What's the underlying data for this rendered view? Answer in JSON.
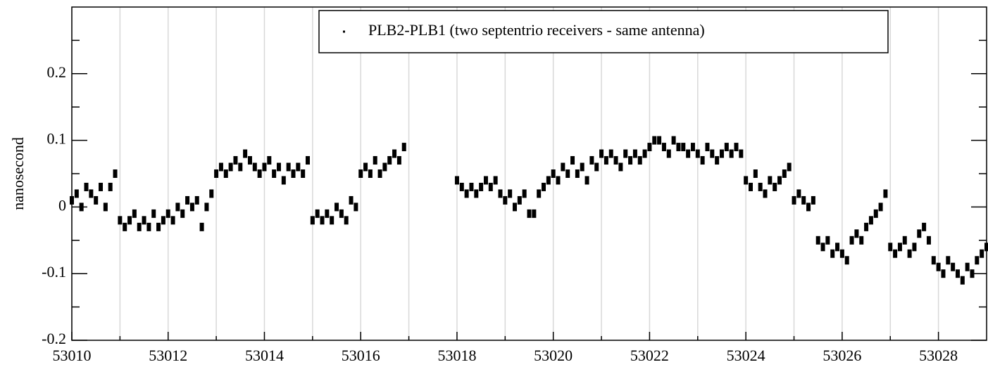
{
  "chart_data": {
    "type": "scatter",
    "y_label": "nanosecond",
    "series": [
      {
        "name": "PLB2-PLB1 (two septentrio receivers - same antenna)",
        "color": "#000000",
        "x": [
          53010.0,
          53010.1,
          53010.2,
          53010.3,
          53010.4,
          53010.5,
          53010.6,
          53010.7,
          53010.8,
          53010.9,
          53011.0,
          53011.1,
          53011.2,
          53011.3,
          53011.4,
          53011.5,
          53011.6,
          53011.7,
          53011.8,
          53011.9,
          53012.0,
          53012.1,
          53012.2,
          53012.3,
          53012.4,
          53012.5,
          53012.6,
          53012.7,
          53012.8,
          53012.9,
          53013.0,
          53013.1,
          53013.2,
          53013.3,
          53013.4,
          53013.5,
          53013.6,
          53013.7,
          53013.8,
          53013.9,
          53014.0,
          53014.1,
          53014.2,
          53014.3,
          53014.4,
          53014.5,
          53014.6,
          53014.7,
          53014.8,
          53014.9,
          53015.0,
          53015.1,
          53015.2,
          53015.3,
          53015.4,
          53015.5,
          53015.6,
          53015.7,
          53015.8,
          53015.9,
          53016.0,
          53016.1,
          53016.2,
          53016.3,
          53016.4,
          53016.5,
          53016.6,
          53016.7,
          53016.8,
          53016.9,
          53018.0,
          53018.1,
          53018.2,
          53018.3,
          53018.4,
          53018.5,
          53018.6,
          53018.7,
          53018.8,
          53018.9,
          53019.0,
          53019.1,
          53019.2,
          53019.3,
          53019.4,
          53019.5,
          53019.6,
          53019.7,
          53019.8,
          53019.9,
          53020.0,
          53020.1,
          53020.2,
          53020.3,
          53020.4,
          53020.5,
          53020.6,
          53020.7,
          53020.8,
          53020.9,
          53021.0,
          53021.1,
          53021.2,
          53021.3,
          53021.4,
          53021.5,
          53021.6,
          53021.7,
          53021.8,
          53021.9,
          53022.0,
          53022.1,
          53022.2,
          53022.3,
          53022.4,
          53022.5,
          53022.6,
          53022.7,
          53022.8,
          53022.9,
          53023.0,
          53023.1,
          53023.2,
          53023.3,
          53023.4,
          53023.5,
          53023.6,
          53023.7,
          53023.8,
          53023.9,
          53024.0,
          53024.1,
          53024.2,
          53024.3,
          53024.4,
          53024.5,
          53024.6,
          53024.7,
          53024.8,
          53024.9,
          53025.0,
          53025.1,
          53025.2,
          53025.3,
          53025.4,
          53025.5,
          53025.6,
          53025.7,
          53025.8,
          53025.9,
          53026.0,
          53026.1,
          53026.2,
          53026.3,
          53026.4,
          53026.5,
          53026.6,
          53026.7,
          53026.8,
          53026.9,
          53027.0,
          53027.1,
          53027.2,
          53027.3,
          53027.4,
          53027.5,
          53027.6,
          53027.7,
          53027.8,
          53027.9,
          53028.0,
          53028.1,
          53028.2,
          53028.3,
          53028.4,
          53028.5,
          53028.6,
          53028.7,
          53028.8,
          53028.9,
          53029.0
        ],
        "values": [
          0.01,
          0.02,
          0.0,
          0.03,
          0.02,
          0.01,
          0.03,
          0.0,
          0.03,
          0.05,
          -0.02,
          -0.03,
          -0.02,
          -0.01,
          -0.03,
          -0.02,
          -0.03,
          -0.01,
          -0.03,
          -0.02,
          -0.01,
          -0.02,
          0.0,
          -0.01,
          0.01,
          0.0,
          0.01,
          -0.03,
          0.0,
          0.02,
          0.05,
          0.06,
          0.05,
          0.06,
          0.07,
          0.06,
          0.08,
          0.07,
          0.06,
          0.05,
          0.06,
          0.07,
          0.05,
          0.06,
          0.04,
          0.06,
          0.05,
          0.06,
          0.05,
          0.07,
          -0.02,
          -0.01,
          -0.02,
          -0.01,
          -0.02,
          0.0,
          -0.01,
          -0.02,
          0.01,
          0.0,
          0.05,
          0.06,
          0.05,
          0.07,
          0.05,
          0.06,
          0.07,
          0.08,
          0.07,
          0.09,
          0.04,
          0.03,
          0.02,
          0.03,
          0.02,
          0.03,
          0.04,
          0.03,
          0.04,
          0.02,
          0.01,
          0.02,
          0.0,
          0.01,
          0.02,
          -0.01,
          -0.01,
          0.02,
          0.03,
          0.04,
          0.05,
          0.04,
          0.06,
          0.05,
          0.07,
          0.05,
          0.06,
          0.04,
          0.07,
          0.06,
          0.08,
          0.07,
          0.08,
          0.07,
          0.06,
          0.08,
          0.07,
          0.08,
          0.07,
          0.08,
          0.09,
          0.1,
          0.1,
          0.09,
          0.08,
          0.1,
          0.09,
          0.09,
          0.08,
          0.09,
          0.08,
          0.07,
          0.09,
          0.08,
          0.07,
          0.08,
          0.09,
          0.08,
          0.09,
          0.08,
          0.04,
          0.03,
          0.05,
          0.03,
          0.02,
          0.04,
          0.03,
          0.04,
          0.05,
          0.06,
          0.01,
          0.02,
          0.01,
          0.0,
          0.01,
          -0.05,
          -0.06,
          -0.05,
          -0.07,
          -0.06,
          -0.07,
          -0.08,
          -0.05,
          -0.04,
          -0.05,
          -0.03,
          -0.02,
          -0.01,
          0.0,
          0.02,
          -0.06,
          -0.07,
          -0.06,
          -0.05,
          -0.07,
          -0.06,
          -0.04,
          -0.03,
          -0.05,
          -0.08,
          -0.09,
          -0.1,
          -0.08,
          -0.09,
          -0.1,
          -0.11,
          -0.09,
          -0.1,
          -0.08,
          -0.07,
          -0.06
        ]
      }
    ],
    "xlim": [
      53010,
      53029
    ],
    "xticks": [
      53010,
      53012,
      53014,
      53016,
      53018,
      53020,
      53022,
      53024,
      53026,
      53028
    ],
    "xminorticks": [
      53011,
      53013,
      53015,
      53017,
      53019,
      53021,
      53023,
      53025,
      53027
    ],
    "ylim": [
      -0.2,
      0.3
    ],
    "yticks": [
      -0.2,
      -0.1,
      0,
      0.1,
      0.2
    ],
    "yminorticks": [
      -0.15,
      -0.05,
      0.05,
      0.15,
      0.25
    ],
    "grid": true,
    "legend": "upper right"
  }
}
